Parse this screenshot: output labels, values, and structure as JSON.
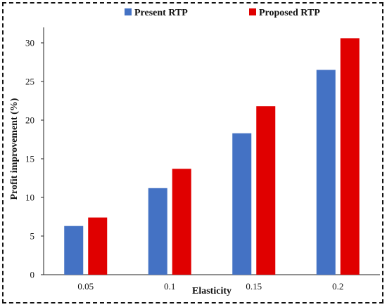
{
  "chart_data": {
    "type": "bar",
    "categories": [
      "0.05",
      "0.1",
      "0.15",
      "0.2"
    ],
    "series": [
      {
        "name": "Present RTP",
        "values": [
          6.3,
          11.2,
          18.3,
          26.5
        ],
        "color": "#4472C4"
      },
      {
        "name": "Proposed RTP",
        "values": [
          7.4,
          13.7,
          21.8,
          30.6
        ],
        "color": "#E00000"
      }
    ],
    "title": "",
    "xlabel": "Elasticity",
    "ylabel": "Profit improvement (%)",
    "ylim": [
      0,
      32
    ],
    "yticks": [
      "0",
      "5",
      "10",
      "15",
      "20",
      "25",
      "30"
    ],
    "grid": false,
    "legend": "top"
  }
}
